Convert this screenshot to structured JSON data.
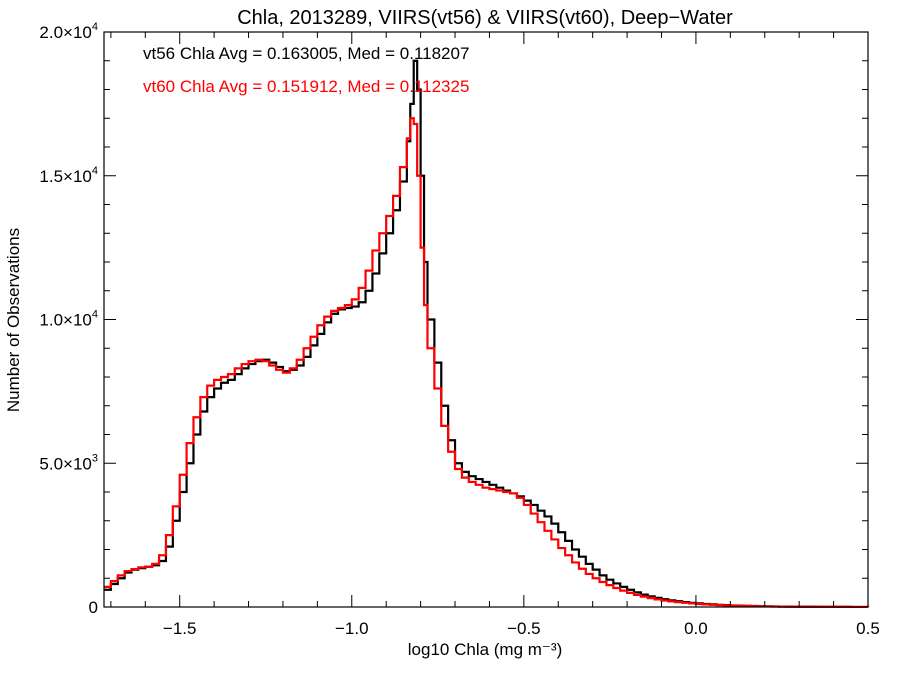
{
  "chart_data": {
    "type": "line",
    "title": "Chla, 2013289, VIIRS(vt56) & VIIRS(vt60), Deep−Water",
    "xlabel": "log10 Chla (mg m⁻³)",
    "ylabel": "Number of Observations",
    "xlim": [
      -1.72,
      0.5
    ],
    "ylim": [
      0,
      20000
    ],
    "x_ticks": [
      -1.5,
      -1.0,
      -0.5,
      0.0,
      0.5
    ],
    "x_tick_labels": [
      "−1.5",
      "−1.0",
      "−0.5",
      "0.0",
      "0.5"
    ],
    "y_ticks": [
      0,
      5000,
      10000,
      15000,
      20000
    ],
    "y_tick_labels": [
      {
        "mantissa": "0",
        "exponent": ""
      },
      {
        "mantissa": "5.0×10",
        "exponent": "3"
      },
      {
        "mantissa": "1.0×10",
        "exponent": "4"
      },
      {
        "mantissa": "1.5×10",
        "exponent": "4"
      },
      {
        "mantissa": "2.0×10",
        "exponent": "4"
      }
    ],
    "step_style": "histogram",
    "annotations": [
      {
        "text": "vt56 Chla Avg = 0.163005, Med = 0.118207",
        "color": "#000000"
      },
      {
        "text": "vt60 Chla Avg = 0.151912, Med = 0.112325",
        "color": "#ff0000"
      }
    ],
    "series": [
      {
        "color": "#000000",
        "points": [
          [
            -1.72,
            600
          ],
          [
            -1.7,
            800
          ],
          [
            -1.68,
            1000
          ],
          [
            -1.66,
            1200
          ],
          [
            -1.64,
            1300
          ],
          [
            -1.62,
            1350
          ],
          [
            -1.6,
            1400
          ],
          [
            -1.58,
            1450
          ],
          [
            -1.56,
            1600
          ],
          [
            -1.54,
            2100
          ],
          [
            -1.52,
            3000
          ],
          [
            -1.5,
            4000
          ],
          [
            -1.48,
            5000
          ],
          [
            -1.46,
            6000
          ],
          [
            -1.44,
            6800
          ],
          [
            -1.42,
            7300
          ],
          [
            -1.4,
            7600
          ],
          [
            -1.38,
            7800
          ],
          [
            -1.36,
            7900
          ],
          [
            -1.34,
            8100
          ],
          [
            -1.32,
            8300
          ],
          [
            -1.3,
            8450
          ],
          [
            -1.28,
            8550
          ],
          [
            -1.26,
            8600
          ],
          [
            -1.24,
            8500
          ],
          [
            -1.22,
            8350
          ],
          [
            -1.2,
            8200
          ],
          [
            -1.18,
            8250
          ],
          [
            -1.16,
            8400
          ],
          [
            -1.14,
            8700
          ],
          [
            -1.12,
            9100
          ],
          [
            -1.1,
            9500
          ],
          [
            -1.08,
            9900
          ],
          [
            -1.06,
            10200
          ],
          [
            -1.04,
            10350
          ],
          [
            -1.02,
            10400
          ],
          [
            -1.0,
            10450
          ],
          [
            -0.98,
            10600
          ],
          [
            -0.96,
            11000
          ],
          [
            -0.94,
            11600
          ],
          [
            -0.92,
            12300
          ],
          [
            -0.9,
            13000
          ],
          [
            -0.88,
            13800
          ],
          [
            -0.86,
            14800
          ],
          [
            -0.84,
            16200
          ],
          [
            -0.83,
            17500
          ],
          [
            -0.82,
            19000
          ],
          [
            -0.81,
            18000
          ],
          [
            -0.8,
            15000
          ],
          [
            -0.79,
            12000
          ],
          [
            -0.78,
            10000
          ],
          [
            -0.76,
            8500
          ],
          [
            -0.74,
            7000
          ],
          [
            -0.72,
            5800
          ],
          [
            -0.7,
            5000
          ],
          [
            -0.68,
            4700
          ],
          [
            -0.66,
            4550
          ],
          [
            -0.64,
            4450
          ],
          [
            -0.62,
            4350
          ],
          [
            -0.6,
            4250
          ],
          [
            -0.58,
            4150
          ],
          [
            -0.56,
            4050
          ],
          [
            -0.54,
            3950
          ],
          [
            -0.52,
            3850
          ],
          [
            -0.5,
            3700
          ],
          [
            -0.48,
            3550
          ],
          [
            -0.46,
            3350
          ],
          [
            -0.44,
            3150
          ],
          [
            -0.42,
            2900
          ],
          [
            -0.4,
            2600
          ],
          [
            -0.38,
            2300
          ],
          [
            -0.36,
            2000
          ],
          [
            -0.34,
            1750
          ],
          [
            -0.32,
            1500
          ],
          [
            -0.3,
            1300
          ],
          [
            -0.28,
            1100
          ],
          [
            -0.26,
            950
          ],
          [
            -0.24,
            820
          ],
          [
            -0.22,
            700
          ],
          [
            -0.2,
            600
          ],
          [
            -0.18,
            510
          ],
          [
            -0.16,
            430
          ],
          [
            -0.14,
            370
          ],
          [
            -0.12,
            320
          ],
          [
            -0.1,
            270
          ],
          [
            -0.08,
            230
          ],
          [
            -0.06,
            200
          ],
          [
            -0.04,
            170
          ],
          [
            -0.02,
            145
          ],
          [
            0.0,
            125
          ],
          [
            0.02,
            105
          ],
          [
            0.04,
            90
          ],
          [
            0.06,
            75
          ],
          [
            0.08,
            65
          ],
          [
            0.1,
            55
          ],
          [
            0.12,
            47
          ],
          [
            0.14,
            40
          ],
          [
            0.16,
            34
          ],
          [
            0.18,
            28
          ],
          [
            0.2,
            23
          ],
          [
            0.22,
            19
          ],
          [
            0.24,
            16
          ],
          [
            0.26,
            13
          ],
          [
            0.28,
            11
          ],
          [
            0.3,
            9
          ],
          [
            0.35,
            6
          ],
          [
            0.4,
            4
          ],
          [
            0.45,
            2
          ],
          [
            0.5,
            1
          ]
        ]
      },
      {
        "color": "#ff0000",
        "points": [
          [
            -1.72,
            700
          ],
          [
            -1.7,
            900
          ],
          [
            -1.68,
            1100
          ],
          [
            -1.66,
            1250
          ],
          [
            -1.64,
            1320
          ],
          [
            -1.62,
            1380
          ],
          [
            -1.6,
            1400
          ],
          [
            -1.58,
            1500
          ],
          [
            -1.56,
            1800
          ],
          [
            -1.54,
            2500
          ],
          [
            -1.52,
            3500
          ],
          [
            -1.5,
            4600
          ],
          [
            -1.48,
            5700
          ],
          [
            -1.46,
            6600
          ],
          [
            -1.44,
            7300
          ],
          [
            -1.42,
            7700
          ],
          [
            -1.4,
            7900
          ],
          [
            -1.38,
            8000
          ],
          [
            -1.36,
            8100
          ],
          [
            -1.34,
            8300
          ],
          [
            -1.32,
            8450
          ],
          [
            -1.3,
            8550
          ],
          [
            -1.28,
            8600
          ],
          [
            -1.26,
            8550
          ],
          [
            -1.24,
            8400
          ],
          [
            -1.22,
            8250
          ],
          [
            -1.2,
            8150
          ],
          [
            -1.18,
            8300
          ],
          [
            -1.16,
            8600
          ],
          [
            -1.14,
            9000
          ],
          [
            -1.12,
            9400
          ],
          [
            -1.1,
            9800
          ],
          [
            -1.08,
            10100
          ],
          [
            -1.06,
            10300
          ],
          [
            -1.04,
            10400
          ],
          [
            -1.02,
            10500
          ],
          [
            -1.0,
            10700
          ],
          [
            -0.98,
            11100
          ],
          [
            -0.96,
            11700
          ],
          [
            -0.94,
            12400
          ],
          [
            -0.92,
            13000
          ],
          [
            -0.9,
            13600
          ],
          [
            -0.88,
            14300
          ],
          [
            -0.86,
            15300
          ],
          [
            -0.84,
            16300
          ],
          [
            -0.83,
            17000
          ],
          [
            -0.82,
            16800
          ],
          [
            -0.81,
            15000
          ],
          [
            -0.8,
            12500
          ],
          [
            -0.79,
            10500
          ],
          [
            -0.78,
            9000
          ],
          [
            -0.76,
            7600
          ],
          [
            -0.74,
            6300
          ],
          [
            -0.72,
            5400
          ],
          [
            -0.7,
            4800
          ],
          [
            -0.68,
            4500
          ],
          [
            -0.66,
            4350
          ],
          [
            -0.64,
            4250
          ],
          [
            -0.62,
            4150
          ],
          [
            -0.6,
            4100
          ],
          [
            -0.58,
            4050
          ],
          [
            -0.56,
            4000
          ],
          [
            -0.54,
            3950
          ],
          [
            -0.52,
            3800
          ],
          [
            -0.5,
            3550
          ],
          [
            -0.48,
            3250
          ],
          [
            -0.46,
            2950
          ],
          [
            -0.44,
            2650
          ],
          [
            -0.42,
            2350
          ],
          [
            -0.4,
            2050
          ],
          [
            -0.38,
            1800
          ],
          [
            -0.36,
            1550
          ],
          [
            -0.34,
            1330
          ],
          [
            -0.32,
            1150
          ],
          [
            -0.3,
            1000
          ],
          [
            -0.28,
            870
          ],
          [
            -0.26,
            760
          ],
          [
            -0.24,
            660
          ],
          [
            -0.22,
            570
          ],
          [
            -0.2,
            490
          ],
          [
            -0.18,
            420
          ],
          [
            -0.16,
            360
          ],
          [
            -0.14,
            310
          ],
          [
            -0.12,
            265
          ],
          [
            -0.1,
            225
          ],
          [
            -0.08,
            195
          ],
          [
            -0.06,
            170
          ],
          [
            -0.04,
            145
          ],
          [
            -0.02,
            125
          ],
          [
            0.0,
            105
          ],
          [
            0.02,
            90
          ],
          [
            0.04,
            77
          ],
          [
            0.06,
            65
          ],
          [
            0.08,
            55
          ],
          [
            0.1,
            47
          ],
          [
            0.12,
            40
          ],
          [
            0.14,
            34
          ],
          [
            0.16,
            29
          ],
          [
            0.18,
            24
          ],
          [
            0.2,
            20
          ],
          [
            0.22,
            16
          ],
          [
            0.24,
            13
          ],
          [
            0.26,
            11
          ],
          [
            0.28,
            9
          ],
          [
            0.3,
            7
          ],
          [
            0.35,
            5
          ],
          [
            0.4,
            3
          ],
          [
            0.45,
            2
          ],
          [
            0.5,
            1
          ]
        ]
      }
    ]
  }
}
